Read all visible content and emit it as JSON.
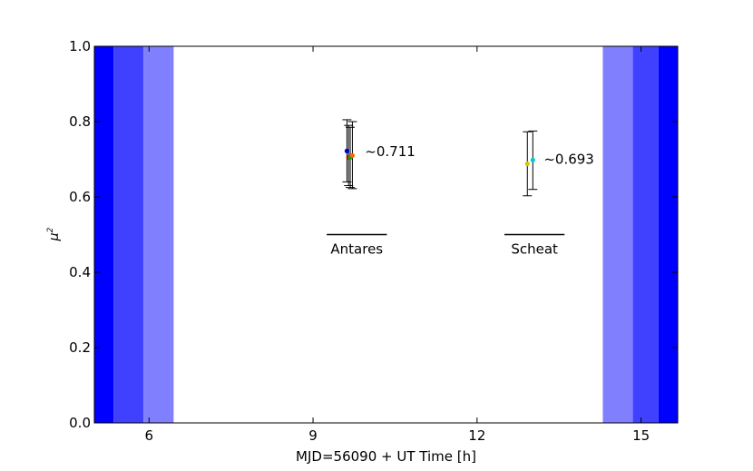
{
  "chart_data": {
    "type": "scatter",
    "title": "",
    "xlabel": "MJD=56090 + UT Time [h]",
    "ylabel": "μ",
    "ylabel_superscript": "2",
    "xlim": [
      5.0,
      15.67
    ],
    "ylim": [
      0.0,
      1.0
    ],
    "xticks": [
      6,
      9,
      12,
      15
    ],
    "xtick_labels": [
      "6",
      "9",
      "12",
      "15"
    ],
    "yticks": [
      0.0,
      0.2,
      0.4,
      0.6,
      0.8,
      1.0
    ],
    "ytick_labels": [
      "0.0",
      "0.2",
      "0.4",
      "0.6",
      "0.8",
      "1.0"
    ],
    "grid": false,
    "shaded_bands": [
      {
        "x0": 5.0,
        "x1": 5.35,
        "color": "#0000ff"
      },
      {
        "x0": 5.35,
        "x1": 5.9,
        "color": "#4040ff"
      },
      {
        "x0": 5.9,
        "x1": 6.45,
        "color": "#8080ff"
      },
      {
        "x0": 14.3,
        "x1": 14.85,
        "color": "#8080ff"
      },
      {
        "x0": 14.85,
        "x1": 15.32,
        "color": "#4040ff"
      },
      {
        "x0": 15.32,
        "x1": 15.67,
        "color": "#0000ff"
      }
    ],
    "points": [
      {
        "x": 9.62,
        "y": 0.722,
        "yerr_low": 0.64,
        "yerr_high": 0.805,
        "color": "#0000cc"
      },
      {
        "x": 9.65,
        "y": 0.705,
        "yerr_low": 0.63,
        "yerr_high": 0.79,
        "color": "#cc0000"
      },
      {
        "x": 9.68,
        "y": 0.705,
        "yerr_low": 0.625,
        "yerr_high": 0.785,
        "color": "#00aa00"
      },
      {
        "x": 9.72,
        "y": 0.71,
        "yerr_low": 0.622,
        "yerr_high": 0.8,
        "color": "#ff6600"
      },
      {
        "x": 12.92,
        "y": 0.688,
        "yerr_low": 0.603,
        "yerr_high": 0.773,
        "color": "#cccc00"
      },
      {
        "x": 13.02,
        "y": 0.698,
        "yerr_low": 0.62,
        "yerr_high": 0.775,
        "color": "#00cccc"
      }
    ],
    "annotations": [
      {
        "text": "~0.711",
        "x": 9.95,
        "y": 0.72
      },
      {
        "text": "~0.693",
        "x": 13.22,
        "y": 0.7
      }
    ],
    "target_labels": [
      {
        "text": "Antares",
        "x0": 9.25,
        "x1": 10.35,
        "y": 0.5
      },
      {
        "text": "Scheat",
        "x0": 12.5,
        "x1": 13.6,
        "y": 0.5
      }
    ]
  }
}
